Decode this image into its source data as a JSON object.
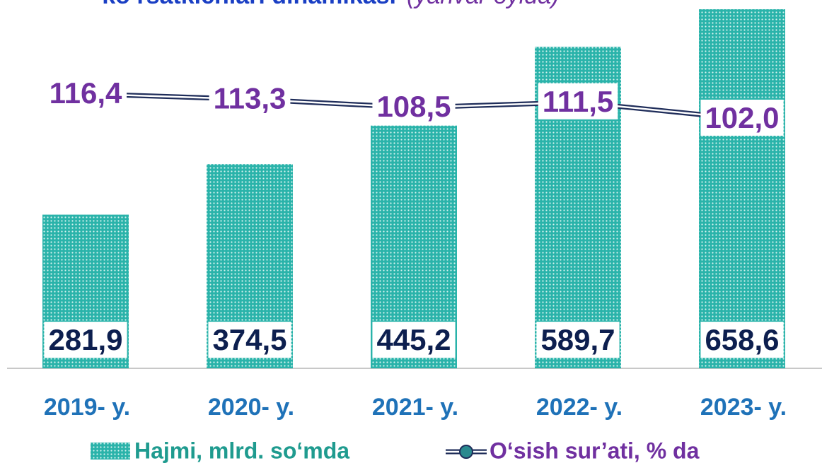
{
  "chart_data": {
    "type": "bar",
    "title": "ko‘rsatkichlari dinamikasi",
    "subtitle": "(yanvar oyida)",
    "categories": [
      "2019- y.",
      "2020- y.",
      "2021- y.",
      "2022- y.",
      "2023- y."
    ],
    "series": [
      {
        "name": "Hajmi, mlrd. so‘mda",
        "color": "#2ab3aa",
        "values": [
          281.9,
          374.5,
          445.2,
          589.7,
          658.6
        ],
        "value_labels": [
          "281,9",
          "374,5",
          "445,2",
          "589,7",
          "658,6"
        ]
      },
      {
        "name": "O‘sish sur’ati, % da",
        "type": "line",
        "axis": "y2",
        "color": "#1f2d5a",
        "label_color": "#7030a0",
        "values": [
          116.4,
          113.3,
          108.5,
          111.5,
          102.0
        ],
        "value_labels": [
          "116,4",
          "113,3",
          "108,5",
          "111,5",
          "102,0"
        ]
      }
    ],
    "ylim": [
      0,
      660
    ],
    "y2lim": [
      -43,
      166
    ],
    "legend": "bottom"
  }
}
